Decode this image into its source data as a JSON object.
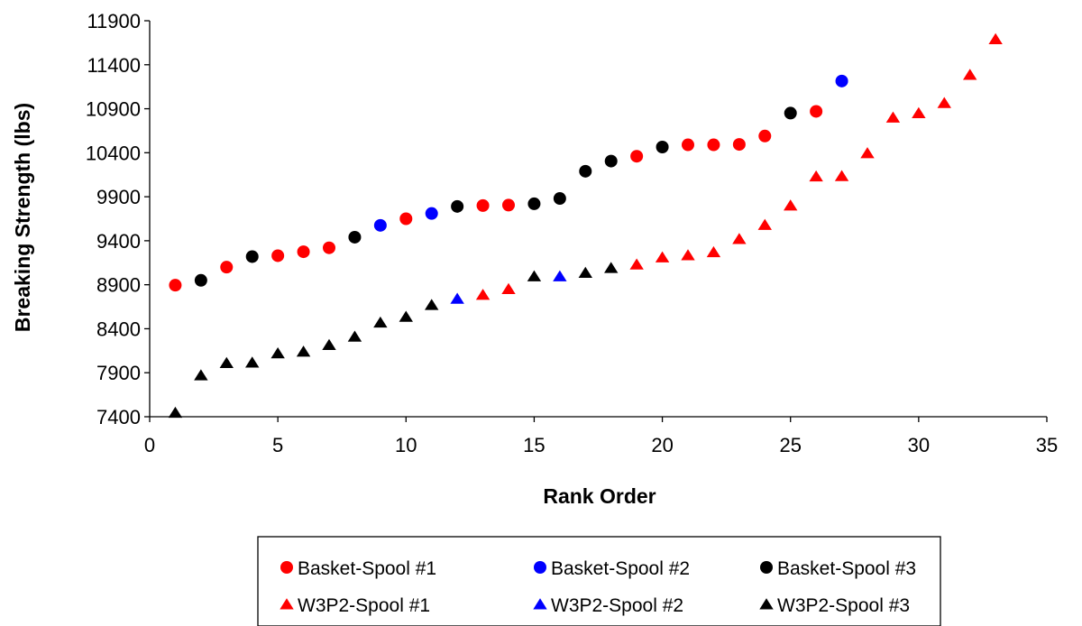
{
  "chart_data": {
    "type": "scatter",
    "title": "",
    "xlabel": "Rank Order",
    "ylabel": "Breaking Strength (lbs)",
    "xlim": [
      0,
      35
    ],
    "ylim": [
      7400,
      11900
    ],
    "xticks": [
      "0",
      "5",
      "10",
      "15",
      "20",
      "25",
      "30",
      "35"
    ],
    "yticks": [
      "7400",
      "7900",
      "8400",
      "8900",
      "9400",
      "9900",
      "10400",
      "10900",
      "11400",
      "11900"
    ],
    "grid": false,
    "legend_position": "bottom",
    "series": [
      {
        "name": "Basket-Spool #1",
        "marker": "circle",
        "color": "#ff0000",
        "points": [
          [
            1,
            8895
          ],
          [
            3,
            9100
          ],
          [
            5,
            9230
          ],
          [
            6,
            9275
          ],
          [
            7,
            9320
          ],
          [
            10,
            9650
          ],
          [
            13,
            9800
          ],
          [
            14,
            9805
          ],
          [
            19,
            10360
          ],
          [
            21,
            10490
          ],
          [
            22,
            10490
          ],
          [
            23,
            10495
          ],
          [
            24,
            10590
          ],
          [
            26,
            10870
          ]
        ]
      },
      {
        "name": "Basket-Spool #2",
        "marker": "circle",
        "color": "#0000ff",
        "points": [
          [
            9,
            9575
          ],
          [
            11,
            9710
          ],
          [
            27,
            11215
          ]
        ]
      },
      {
        "name": "Basket-Spool #3",
        "marker": "circle",
        "color": "#000000",
        "points": [
          [
            2,
            8950
          ],
          [
            4,
            9220
          ],
          [
            8,
            9440
          ],
          [
            12,
            9790
          ],
          [
            15,
            9820
          ],
          [
            16,
            9880
          ],
          [
            17,
            10190
          ],
          [
            18,
            10305
          ],
          [
            20,
            10465
          ],
          [
            25,
            10850
          ]
        ]
      },
      {
        "name": "W3P2-Spool #1",
        "marker": "triangle",
        "color": "#ff0000",
        "points": [
          [
            13,
            8785
          ],
          [
            14,
            8850
          ],
          [
            19,
            9130
          ],
          [
            20,
            9210
          ],
          [
            21,
            9235
          ],
          [
            22,
            9270
          ],
          [
            23,
            9420
          ],
          [
            24,
            9580
          ],
          [
            25,
            9800
          ],
          [
            26,
            10130
          ],
          [
            27,
            10135
          ],
          [
            28,
            10395
          ],
          [
            29,
            10800
          ],
          [
            30,
            10850
          ],
          [
            31,
            10965
          ],
          [
            32,
            11285
          ],
          [
            33,
            11690
          ]
        ]
      },
      {
        "name": "W3P2-Spool #2",
        "marker": "triangle",
        "color": "#0000ff",
        "points": [
          [
            12,
            8740
          ],
          [
            16,
            8995
          ]
        ]
      },
      {
        "name": "W3P2-Spool #3",
        "marker": "triangle",
        "color": "#000000",
        "points": [
          [
            1,
            7445
          ],
          [
            2,
            7870
          ],
          [
            3,
            8010
          ],
          [
            4,
            8015
          ],
          [
            5,
            8120
          ],
          [
            6,
            8140
          ],
          [
            7,
            8215
          ],
          [
            8,
            8310
          ],
          [
            9,
            8470
          ],
          [
            10,
            8535
          ],
          [
            11,
            8670
          ],
          [
            15,
            8995
          ],
          [
            17,
            9035
          ],
          [
            18,
            9090
          ]
        ]
      }
    ]
  }
}
